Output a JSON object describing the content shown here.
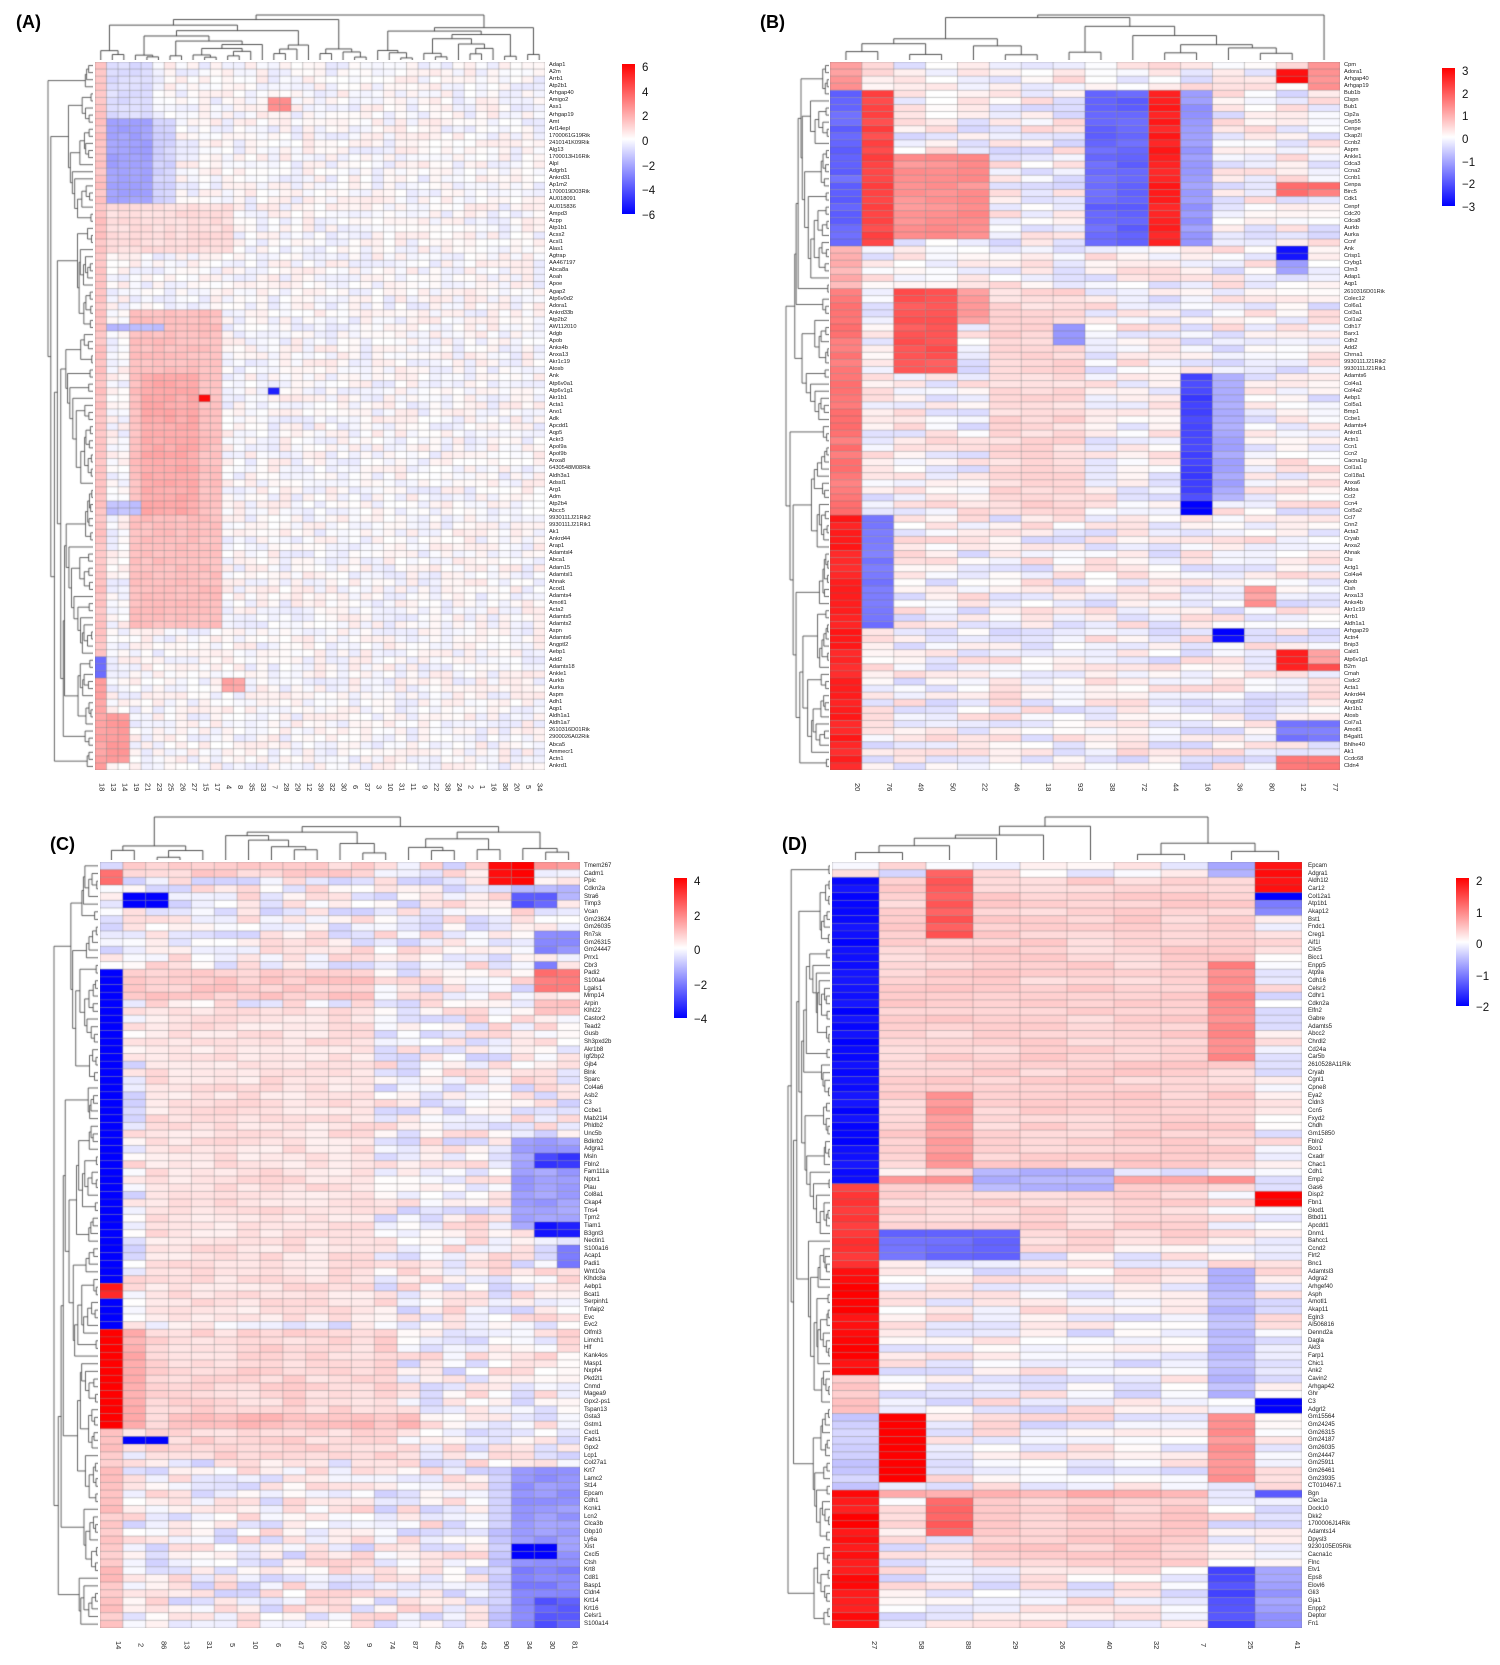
{
  "figure": {
    "background": "#ffffff",
    "colormap": {
      "low": "#0000ff",
      "mid": "#ffffff",
      "high": "#ff0000"
    }
  },
  "chart_data": [
    {
      "type": "heatmap",
      "panel_label": "(A)",
      "legend_position": "right",
      "vmin": -6,
      "vmax": 6,
      "colorbar_ticks": [
        6,
        4,
        2,
        0,
        -2,
        -4,
        -6
      ],
      "col_labels": [
        "18",
        "13",
        "14",
        "19",
        "21",
        "23",
        "25",
        "26",
        "27",
        "15",
        "17",
        "4",
        "8",
        "35",
        "33",
        "7",
        "28",
        "29",
        "12",
        "39",
        "32",
        "30",
        "6",
        "37",
        "3",
        "10",
        "31",
        "11",
        "9",
        "22",
        "38",
        "24",
        "2",
        "1",
        "16",
        "36",
        "20",
        "5",
        "34"
      ],
      "row_labels": [
        "Adap1",
        "A2m",
        "Arrb1",
        "Atp2b1",
        "Arhgap40",
        "Amigo2",
        "Ass1",
        "Arhgap19",
        "Amt",
        "Arl14epl",
        "1700061G19Rik",
        "2410141K09Rik",
        "Alg13",
        "1700013H16Rik",
        "Alpl",
        "Adgrb1",
        "Ankrd31",
        "Ap1m2",
        "1700019D03Rik",
        "AU018091",
        "AU015836",
        "Ampd3",
        "Acpp",
        "Atp1b1",
        "Acss2",
        "Acsl1",
        "Alas1",
        "Agtrap",
        "AA467197",
        "Abca8a",
        "Aoah",
        "Apoe",
        "Agap2",
        "Atp6v0d2",
        "Adora1",
        "Ankrd33b",
        "Atp2b2",
        "AW112010",
        "Adgb",
        "Apob",
        "Anks4b",
        "Anxa13",
        "Akr1c19",
        "Atosb",
        "Ank",
        "Atp6v0a1",
        "Atp6v1g1",
        "Akr1b1",
        "Acta1",
        "Ano1",
        "Adk",
        "Apcdd1",
        "Aqp5",
        "Ackr3",
        "Apol9a",
        "Apol9b",
        "Anxa8",
        "6430548M08Rik",
        "Aldh3a1",
        "Adssl1",
        "Arg1",
        "Adm",
        "Atp2b4",
        "Abcc5",
        "9930111J21Rik2",
        "9930111J21Rik1",
        "Ak1",
        "Ankrd44",
        "Arap1",
        "Adamtsl4",
        "Abca1",
        "Adam15",
        "Adamtsl1",
        "Ahnak",
        "Acod1",
        "Adamts4",
        "Amotl1",
        "Acta2",
        "Adamts5",
        "Adamts2",
        "Aspn",
        "Adamts6",
        "Angptl2",
        "Aebp1",
        "Add2",
        "Adamts18",
        "Ankle1",
        "Aurkb",
        "Aurka",
        "Aspm",
        "Adh1",
        "Aqp1",
        "Aldh1a1",
        "Aldh1a7",
        "2610316D01Rik",
        "2900026A02Rik",
        "Abca5",
        "Ammecr1",
        "Actn1",
        "Ankrd1"
      ],
      "regions": [
        [
          21,
          27,
          2,
          12,
          0.8
        ],
        [
          1,
          8,
          2,
          5,
          -0.8
        ],
        [
          9,
          20,
          2,
          5,
          -2.2
        ],
        [
          9,
          20,
          6,
          7,
          -1.0
        ],
        [
          36,
          80,
          4,
          11,
          1.5
        ],
        [
          45,
          64,
          5,
          9,
          2.0
        ],
        [
          38,
          38,
          2,
          6,
          -1.6
        ],
        [
          1,
          84,
          1,
          1,
          1.4
        ],
        [
          85,
          87,
          1,
          1,
          -3.4
        ],
        [
          88,
          100,
          1,
          1,
          2.2
        ],
        [
          93,
          99,
          2,
          3,
          2.4
        ],
        [
          6,
          7,
          16,
          17,
          2.8
        ],
        [
          47,
          47,
          16,
          16,
          -5.4
        ],
        [
          48,
          48,
          10,
          10,
          5.8
        ],
        [
          88,
          89,
          12,
          13,
          2.2
        ],
        [
          63,
          64,
          2,
          4,
          -1.4
        ]
      ],
      "noise": 0.55,
      "seed": 11
    },
    {
      "type": "heatmap",
      "panel_label": "(B)",
      "legend_position": "right",
      "vmin": -3,
      "vmax": 3,
      "colorbar_ticks": [
        3,
        2,
        1,
        0,
        -1,
        -2,
        -3
      ],
      "col_labels": [
        "20",
        "76",
        "49",
        "50",
        "22",
        "46",
        "18",
        "93",
        "38",
        "72",
        "44",
        "16",
        "36",
        "80",
        "12",
        "77"
      ],
      "row_labels": [
        "Cpm",
        "Adora1",
        "Arhgap40",
        "Arhgap19",
        "Bub1b",
        "Clspn",
        "Bub1",
        "Cip2a",
        "Cep55",
        "Cenpe",
        "Ckap2l",
        "Ccnb2",
        "Aspm",
        "Ankle1",
        "Cdca3",
        "Ccna2",
        "Ccnb1",
        "Cenpa",
        "Birc5",
        "Cdk1",
        "Cenpf",
        "Cdc20",
        "Cdca8",
        "Aurkb",
        "Aurka",
        "Ccnf",
        "Ank",
        "Crisp1",
        "Crybg1",
        "Clrn3",
        "Adap1",
        "Aqp1",
        "2610316D01Rik",
        "Colec12",
        "Col6a1",
        "Col3a1",
        "Col1a2",
        "Cdh17",
        "Barx1",
        "Cdh2",
        "Add2",
        "Chrna1",
        "9930111J21Rik2",
        "9930111J21Rik1",
        "Adamts6",
        "Col4a1",
        "Col4a2",
        "Aebp1",
        "Col5a1",
        "Bmp1",
        "Ccbe1",
        "Adamts4",
        "Ankrd1",
        "Actn1",
        "Ccn1",
        "Ccn2",
        "Cacna1g",
        "Col1a1",
        "Col18a1",
        "Anxa6",
        "Aldoa",
        "Ccl2",
        "Ccn4",
        "Col5a2",
        "Ccl7",
        "Cnn2",
        "Acta2",
        "Cryab",
        "Anxa2",
        "Ahnak",
        "Clu",
        "Actg1",
        "Col4a4",
        "Apob",
        "Cish",
        "Anxa13",
        "Anks4b",
        "Akr1c19",
        "Arrb1",
        "Aldh1a1",
        "Arhgap29",
        "Actn4",
        "Bnip3",
        "Cald1",
        "Atp6v1g1",
        "B2m",
        "Cmah",
        "Csdc2",
        "Acta1",
        "Ankrd44",
        "Angptl2",
        "Akr1b1",
        "Atosb",
        "Col7a1",
        "Amotl1",
        "B4galt1",
        "Bhlhe40",
        "Ak1",
        "Ccdc68",
        "Cldn4"
      ],
      "regions": [
        [
          1,
          4,
          1,
          1,
          1.2
        ],
        [
          5,
          26,
          1,
          1,
          -1.8
        ],
        [
          27,
          32,
          1,
          1,
          0.9
        ],
        [
          33,
          64,
          1,
          1,
          1.6
        ],
        [
          65,
          100,
          1,
          1,
          2.6
        ],
        [
          5,
          26,
          2,
          2,
          2.2
        ],
        [
          65,
          80,
          2,
          2,
          -1.6
        ],
        [
          14,
          25,
          3,
          5,
          1.3
        ],
        [
          33,
          44,
          3,
          4,
          2.0
        ],
        [
          33,
          37,
          5,
          5,
          1.1
        ],
        [
          33,
          64,
          6,
          8,
          0.45
        ],
        [
          38,
          40,
          8,
          8,
          -1.2
        ],
        [
          5,
          26,
          9,
          10,
          -1.8
        ],
        [
          5,
          26,
          11,
          11,
          2.6
        ],
        [
          5,
          26,
          12,
          12,
          -1.2
        ],
        [
          45,
          62,
          12,
          12,
          -2.2
        ],
        [
          63,
          64,
          12,
          12,
          -3.2
        ],
        [
          45,
          62,
          13,
          13,
          -1.0
        ],
        [
          81,
          82,
          13,
          13,
          -3.0
        ],
        [
          2,
          3,
          15,
          15,
          2.8
        ],
        [
          1,
          4,
          16,
          16,
          1.2
        ],
        [
          18,
          19,
          15,
          16,
          1.6
        ],
        [
          27,
          28,
          15,
          15,
          -2.8
        ],
        [
          29,
          30,
          15,
          15,
          -1.2
        ],
        [
          75,
          77,
          14,
          14,
          1.2
        ],
        [
          84,
          86,
          15,
          15,
          2.6
        ],
        [
          84,
          86,
          16,
          16,
          1.2
        ],
        [
          86,
          86,
          16,
          16,
          2.0
        ],
        [
          94,
          96,
          15,
          16,
          -1.6
        ],
        [
          99,
          100,
          15,
          16,
          1.5
        ]
      ],
      "noise": 0.5,
      "seed": 22
    },
    {
      "type": "heatmap",
      "panel_label": "(C)",
      "legend_position": "right",
      "vmin": -4,
      "vmax": 4,
      "colorbar_ticks": [
        4,
        2,
        0,
        -2,
        -4
      ],
      "col_labels": [
        "14",
        "2",
        "86",
        "13",
        "31",
        "5",
        "10",
        "6",
        "47",
        "92",
        "28",
        "9",
        "74",
        "87",
        "42",
        "45",
        "43",
        "90",
        "34",
        "30",
        "81"
      ],
      "row_labels": [
        "Tmem267",
        "Cadm1",
        "Ppic",
        "Cdkn2a",
        "Stra6",
        "Timp3",
        "Vcan",
        "Gm23624",
        "Gm26035",
        "Rn7sk",
        "Gm26315",
        "Gm24447",
        "Prrx1",
        "Cbr3",
        "Padi2",
        "S100a4",
        "Lgals1",
        "Mmp14",
        "Arpin",
        "Klhl22",
        "Castor2",
        "Tead2",
        "Gusb",
        "Sh3pxd2b",
        "Akr1b8",
        "Igf2bp2",
        "Gjb4",
        "Blnk",
        "Sparc",
        "Col4a6",
        "Asb2",
        "C3",
        "Ccbe1",
        "Mab21l4",
        "Phldb2",
        "Unc5b",
        "Bdkrb2",
        "Adgra1",
        "Msln",
        "Fbln2",
        "Fam111a",
        "Nptx1",
        "Plau",
        "Col8a1",
        "Ckap4",
        "Tns4",
        "Tpm2",
        "Tiam1",
        "B3gnt3",
        "Nectin1",
        "S100a16",
        "Acap1",
        "Padi1",
        "Wnt10a",
        "Klhdc8a",
        "Aebp1",
        "Bcat1",
        "Serpinh1",
        "Tnfaip2",
        "Evc",
        "Evc2",
        "Olfml3",
        "Limch1",
        "Hlf",
        "Kank4os",
        "Masp1",
        "Nxph4",
        "Pkd2l1",
        "Cnmd",
        "Magea9",
        "Gpx2-ps1",
        "Tspan13",
        "Gsta3",
        "Gstm1",
        "Cxcl1",
        "Fads1",
        "Gpx2",
        "Lcp1",
        "Col27a1",
        "Krt7",
        "Lamc2",
        "St14",
        "Epcam",
        "Cdh1",
        "Kcnk1",
        "Lcn2",
        "Clca3b",
        "Gbp10",
        "Ly6a",
        "Xist",
        "Cxcl5",
        "Ctsh",
        "Krt8",
        "Cd81",
        "Basp1",
        "Cldn4",
        "Krt14",
        "Krt16",
        "Celsr1",
        "S100a14"
      ],
      "regions": [
        [
          20,
          60,
          3,
          12,
          0.45
        ],
        [
          15,
          18,
          2,
          12,
          0.8
        ],
        [
          62,
          78,
          3,
          13,
          0.6
        ],
        [
          1,
          2,
          2,
          12,
          0.7
        ],
        [
          73,
          74,
          4,
          14,
          1.0
        ],
        [
          2,
          3,
          1,
          1,
          2.4
        ],
        [
          15,
          61,
          1,
          1,
          -4.3
        ],
        [
          56,
          57,
          1,
          1,
          3.4
        ],
        [
          62,
          74,
          1,
          1,
          4.2
        ],
        [
          75,
          100,
          1,
          1,
          0.9
        ],
        [
          62,
          74,
          2,
          2,
          1.3
        ],
        [
          5,
          6,
          2,
          3,
          -4.6
        ],
        [
          76,
          76,
          2,
          3,
          -4.8
        ],
        [
          1,
          3,
          18,
          19,
          3.9
        ],
        [
          1,
          1,
          20,
          21,
          1.5
        ],
        [
          4,
          5,
          19,
          21,
          -1.2
        ],
        [
          5,
          6,
          19,
          20,
          -2.5
        ],
        [
          10,
          12,
          20,
          21,
          -1.8
        ],
        [
          14,
          14,
          20,
          20,
          -2.0
        ],
        [
          15,
          17,
          20,
          21,
          2.2
        ],
        [
          19,
          20,
          20,
          21,
          1.0
        ],
        [
          37,
          48,
          19,
          21,
          -1.5
        ],
        [
          39,
          40,
          20,
          21,
          -3.0
        ],
        [
          48,
          49,
          20,
          21,
          -3.6
        ],
        [
          51,
          53,
          21,
          21,
          -2.0
        ],
        [
          80,
          100,
          18,
          18,
          -0.8
        ],
        [
          80,
          92,
          19,
          21,
          -1.6
        ],
        [
          90,
          91,
          19,
          20,
          -4.6
        ],
        [
          93,
          100,
          19,
          21,
          -2.0
        ],
        [
          97,
          100,
          20,
          21,
          -2.6
        ]
      ],
      "noise": 0.75,
      "seed": 33
    },
    {
      "type": "heatmap",
      "panel_label": "(D)",
      "legend_position": "right",
      "vmin": -2.6,
      "vmax": 2.6,
      "colorbar_ticks": [
        2,
        1,
        0,
        -1,
        -2
      ],
      "col_labels": [
        "27",
        "58",
        "88",
        "29",
        "26",
        "40",
        "32",
        "7",
        "25",
        "41"
      ],
      "row_labels": [
        "Epcam",
        "Adgra1",
        "Aldh1l2",
        "Car12",
        "Col12a1",
        "Atp1b1",
        "Akap12",
        "Bst1",
        "Fndc1",
        "Creg1",
        "Aif1l",
        "Clic5",
        "Bicc1",
        "Enpp5",
        "Atp9a",
        "Cdh16",
        "Celsr2",
        "Cdhr1",
        "Cdkn2a",
        "Elfn2",
        "Gabre",
        "Adamts5",
        "Abcc2",
        "Chrdl2",
        "Cd24a",
        "Car5b",
        "2610528A11Rik",
        "Cryab",
        "Cgnl1",
        "Cpne8",
        "Eya2",
        "Cldn3",
        "Ccn5",
        "Fxyd2",
        "Chdh",
        "Gm15850",
        "Fbln2",
        "Bco1",
        "Cxadr",
        "Chac1",
        "Cdh1",
        "Emp2",
        "Gas6",
        "Disp2",
        "Fbn1",
        "Glod1",
        "Btbd11",
        "Apcdd1",
        "Dnm1",
        "Bahcc1",
        "Ccnd2",
        "Flrt2",
        "Bnc1",
        "Adamtsl3",
        "Adgra2",
        "Arhgef40",
        "Asph",
        "Amotl1",
        "Akap11",
        "Egln3",
        "AI506816",
        "Dennd2a",
        "Dagla",
        "Akt3",
        "Farp1",
        "Chic1",
        "Ank2",
        "Cavin2",
        "Arhgap42",
        "Ghr",
        "C3",
        "Adgrl2",
        "Gm15564",
        "Gm24245",
        "Gm26315",
        "Gm24187",
        "Gm26035",
        "Gm24447",
        "Gm25911",
        "Gm26461",
        "Gm23935",
        "CT010467.1",
        "Bgn",
        "Clec1a",
        "Dock10",
        "Dkk2",
        "1700006J14Rik",
        "Adamts14",
        "Dpysl3",
        "9230105E05Rik",
        "Cacna1c",
        "Flnc",
        "Etv1",
        "Eps8",
        "Elovl6",
        "Gli3",
        "Gja1",
        "Enpp2",
        "Deptor",
        "Fn1"
      ],
      "regions": [
        [
          3,
          40,
          2,
          9,
          0.45
        ],
        [
          43,
          50,
          2,
          8,
          0.4
        ],
        [
          84,
          92,
          4,
          8,
          0.5
        ],
        [
          42,
          42,
          2,
          9,
          1.0
        ],
        [
          83,
          83,
          2,
          8,
          0.8
        ],
        [
          3,
          42,
          1,
          1,
          -2.5
        ],
        [
          43,
          53,
          1,
          1,
          2.0
        ],
        [
          54,
          67,
          1,
          1,
          2.5
        ],
        [
          68,
          72,
          1,
          1,
          0.6
        ],
        [
          73,
          82,
          1,
          1,
          -0.5
        ],
        [
          83,
          100,
          1,
          1,
          2.4
        ],
        [
          86,
          87,
          1,
          1,
          2.8
        ],
        [
          73,
          81,
          2,
          2,
          2.9
        ],
        [
          49,
          52,
          2,
          4,
          -1.5
        ],
        [
          2,
          10,
          3,
          3,
          1.7
        ],
        [
          31,
          40,
          3,
          3,
          1.0
        ],
        [
          84,
          88,
          3,
          3,
          1.6
        ],
        [
          41,
          43,
          4,
          6,
          -0.8
        ],
        [
          1,
          2,
          9,
          9,
          -0.8
        ],
        [
          14,
          26,
          9,
          9,
          1.2
        ],
        [
          54,
          70,
          9,
          9,
          -0.7
        ],
        [
          73,
          81,
          9,
          9,
          1.1
        ],
        [
          93,
          100,
          9,
          9,
          -1.8
        ],
        [
          1,
          4,
          10,
          10,
          2.5
        ],
        [
          5,
          5,
          10,
          10,
          -2.6
        ],
        [
          6,
          7,
          10,
          10,
          -1.3
        ],
        [
          44,
          45,
          10,
          10,
          2.7
        ],
        [
          71,
          72,
          10,
          10,
          -2.7
        ],
        [
          83,
          83,
          10,
          10,
          -1.6
        ],
        [
          93,
          100,
          10,
          10,
          -1.0
        ]
      ],
      "noise": 0.45,
      "seed": 44
    }
  ]
}
